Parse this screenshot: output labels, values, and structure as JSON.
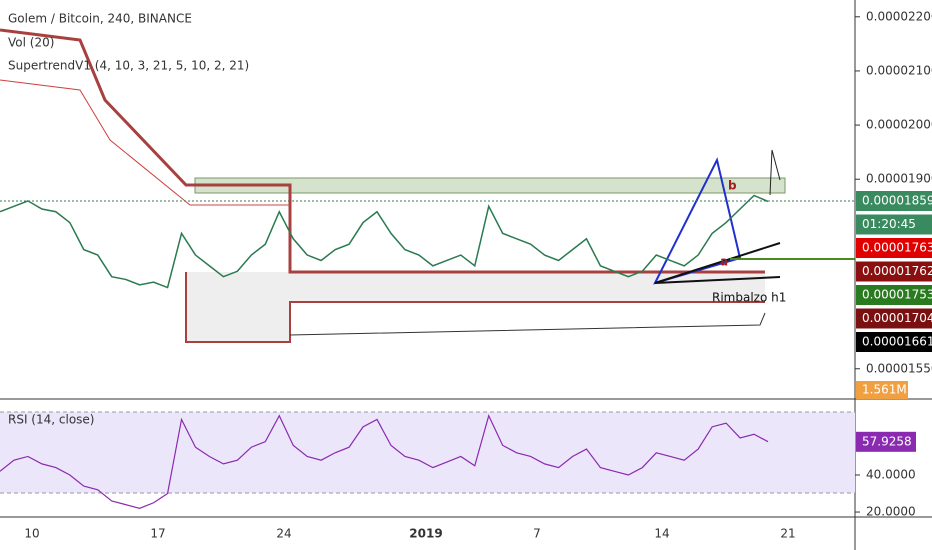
{
  "header": {
    "title": "Golem / Bitcoin, 240, BINANCE",
    "volume": "Vol (20)",
    "supertrend": "SupertrendV1 (4, 10, 3, 21, 5, 10, 2, 21)",
    "rsi": "RSI (14, close)"
  },
  "price": {
    "ylim": [
      1.496e-05,
      2.231e-05
    ],
    "yticks": [
      {
        "value": 2.2e-05,
        "label": "0.00002200"
      },
      {
        "value": 2.1e-05,
        "label": "0.00002100"
      },
      {
        "value": 2e-05,
        "label": "0.00002000"
      },
      {
        "value": 1.9e-05,
        "label": "0.00001900"
      },
      {
        "value": 1.55e-05,
        "label": "0.00001550"
      }
    ],
    "close": [
      1.84e-05,
      1.85e-05,
      1.86e-05,
      1.845e-05,
      1.84e-05,
      1.82e-05,
      1.77e-05,
      1.76e-05,
      1.72e-05,
      1.715e-05,
      1.705e-05,
      1.71e-05,
      1.7e-05,
      1.8e-05,
      1.76e-05,
      1.74e-05,
      1.72e-05,
      1.73e-05,
      1.76e-05,
      1.78e-05,
      1.84e-05,
      1.79e-05,
      1.76e-05,
      1.75e-05,
      1.77e-05,
      1.78e-05,
      1.82e-05,
      1.84e-05,
      1.8e-05,
      1.77e-05,
      1.76e-05,
      1.74e-05,
      1.75e-05,
      1.76e-05,
      1.74e-05,
      1.85e-05,
      1.8e-05,
      1.79e-05,
      1.78e-05,
      1.76e-05,
      1.75e-05,
      1.77e-05,
      1.79e-05,
      1.74e-05,
      1.73e-05,
      1.72e-05,
      1.73e-05,
      1.76e-05,
      1.75e-05,
      1.74e-05,
      1.76e-05,
      1.8e-05,
      1.82e-05,
      1.845e-05,
      1.87e-05,
      1.859e-05
    ]
  },
  "price_labels": [
    "0.00001859",
    "01:20:45",
    "0.00001763",
    "0.00001762",
    "0.00001753",
    "0.00001704",
    "0.00001661"
  ],
  "volume_label": "1.561M",
  "rsi": {
    "ylim": [
      18.4,
      80.5
    ],
    "yticks": [
      {
        "value": 40,
        "label": "40.0000"
      },
      {
        "value": 20,
        "label": "20.0000"
      }
    ],
    "current": {
      "value": 57.9258,
      "label": "57.9258"
    },
    "values": [
      42,
      48,
      50,
      46,
      44,
      40,
      34,
      32,
      26,
      24,
      22,
      25,
      30,
      70,
      55,
      50,
      46,
      48,
      55,
      58,
      72,
      56,
      50,
      48,
      52,
      55,
      66,
      70,
      56,
      50,
      48,
      44,
      47,
      50,
      45,
      72,
      56,
      52,
      50,
      46,
      44,
      50,
      54,
      44,
      42,
      40,
      44,
      52,
      50,
      48,
      54,
      66,
      68,
      60,
      62,
      58
    ]
  },
  "time_axis": [
    "10",
    "17",
    "24",
    "2019",
    "7",
    "14",
    "21"
  ],
  "annotations": [
    "b",
    "a",
    "Rimbalzo h1"
  ]
}
